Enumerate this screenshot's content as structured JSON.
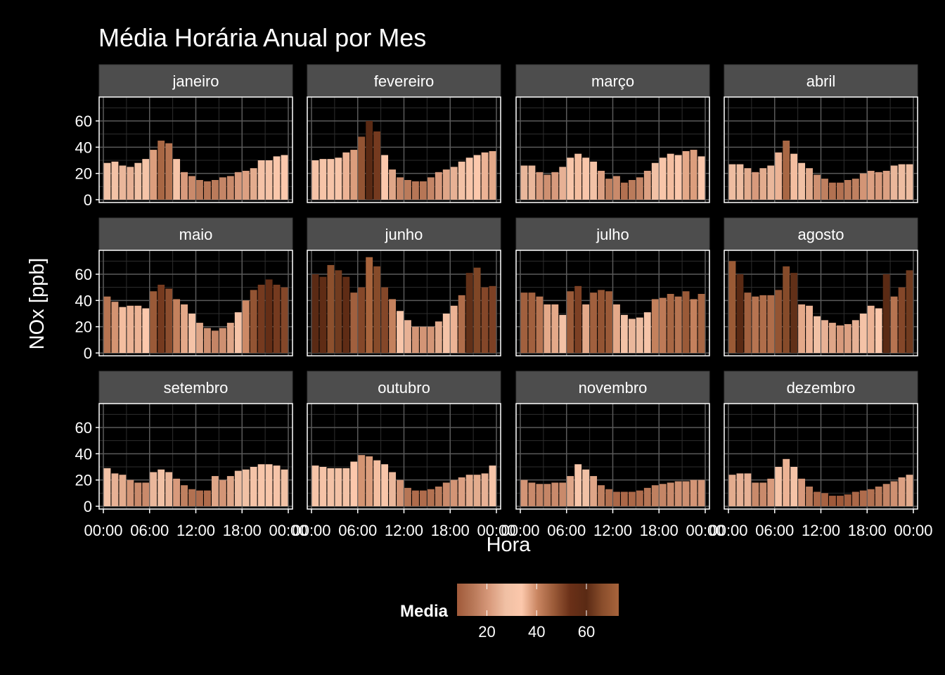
{
  "chart_data": {
    "type": "bar",
    "title": "Média Horária Anual por Mes",
    "xlabel": "Hora",
    "ylabel": "NOx [ppb]",
    "ylim": [
      0,
      75
    ],
    "y_ticks": [
      0,
      20,
      40,
      60
    ],
    "x_tick_labels": [
      "00:00",
      "06:00",
      "12:00",
      "18:00",
      "00:00"
    ],
    "grid": true,
    "legend": {
      "title": "Media",
      "position": "bottom",
      "ticks": [
        20,
        40,
        60
      ],
      "range": [
        8,
        73
      ]
    },
    "colormap": [
      "#a05a3a",
      "#b87858",
      "#d89a7c",
      "#f0c0a4",
      "#fcc8ac",
      "#c88460",
      "#9a5a38",
      "#6a3018",
      "#5a2a14",
      "#8a4e2c",
      "#a8643c"
    ],
    "hours": [
      0,
      1,
      2,
      3,
      4,
      5,
      6,
      7,
      8,
      9,
      10,
      11,
      12,
      13,
      14,
      15,
      16,
      17,
      18,
      19,
      20,
      21,
      22,
      23
    ],
    "panels": [
      {
        "name": "janeiro",
        "values": [
          28,
          29,
          26,
          25,
          28,
          31,
          38,
          45,
          43,
          31,
          21,
          18,
          15,
          14,
          15,
          17,
          18,
          21,
          22,
          24,
          30,
          30,
          33,
          34
        ]
      },
      {
        "name": "fevereiro",
        "values": [
          30,
          31,
          31,
          32,
          36,
          38,
          48,
          60,
          52,
          34,
          23,
          17,
          15,
          14,
          14,
          17,
          21,
          23,
          25,
          29,
          32,
          34,
          36,
          37
        ]
      },
      {
        "name": "março",
        "values": [
          26,
          26,
          21,
          19,
          21,
          25,
          32,
          35,
          32,
          29,
          22,
          16,
          18,
          13,
          15,
          17,
          22,
          28,
          32,
          35,
          34,
          37,
          38,
          33
        ]
      },
      {
        "name": "abril",
        "values": [
          27,
          27,
          24,
          21,
          24,
          26,
          36,
          45,
          35,
          28,
          24,
          19,
          16,
          13,
          13,
          15,
          16,
          20,
          22,
          21,
          22,
          26,
          27,
          27
        ]
      },
      {
        "name": "maio",
        "values": [
          43,
          39,
          35,
          36,
          36,
          34,
          47,
          52,
          49,
          41,
          37,
          30,
          23,
          19,
          17,
          19,
          23,
          31,
          40,
          48,
          52,
          56,
          52,
          50
        ]
      },
      {
        "name": "junho",
        "values": [
          60,
          58,
          67,
          63,
          58,
          46,
          50,
          73,
          66,
          50,
          41,
          32,
          25,
          20,
          20,
          20,
          24,
          30,
          36,
          44,
          61,
          65,
          50,
          51
        ]
      },
      {
        "name": "julho",
        "values": [
          46,
          46,
          43,
          37,
          37,
          29,
          47,
          51,
          37,
          46,
          48,
          47,
          37,
          29,
          26,
          27,
          31,
          41,
          42,
          45,
          43,
          47,
          41,
          45
        ]
      },
      {
        "name": "agosto",
        "values": [
          70,
          60,
          46,
          43,
          44,
          44,
          48,
          66,
          61,
          37,
          36,
          28,
          25,
          23,
          21,
          22,
          25,
          30,
          36,
          34,
          60,
          43,
          50,
          63
        ]
      },
      {
        "name": "setembro",
        "values": [
          29,
          25,
          24,
          20,
          18,
          18,
          26,
          28,
          26,
          21,
          16,
          13,
          12,
          12,
          23,
          20,
          23,
          27,
          28,
          30,
          32,
          32,
          31,
          28
        ]
      },
      {
        "name": "outubro",
        "values": [
          31,
          30,
          29,
          29,
          29,
          34,
          39,
          38,
          35,
          32,
          26,
          20,
          14,
          12,
          12,
          13,
          15,
          18,
          20,
          22,
          24,
          24,
          25,
          31
        ]
      },
      {
        "name": "novembro",
        "values": [
          20,
          18,
          17,
          17,
          18,
          18,
          23,
          32,
          28,
          23,
          16,
          13,
          11,
          11,
          11,
          12,
          14,
          16,
          17,
          18,
          19,
          19,
          20,
          20
        ]
      },
      {
        "name": "dezembro",
        "values": [
          24,
          25,
          25,
          18,
          18,
          21,
          30,
          36,
          30,
          21,
          15,
          11,
          10,
          8,
          8,
          9,
          11,
          12,
          13,
          15,
          17,
          19,
          22,
          24
        ]
      }
    ]
  }
}
